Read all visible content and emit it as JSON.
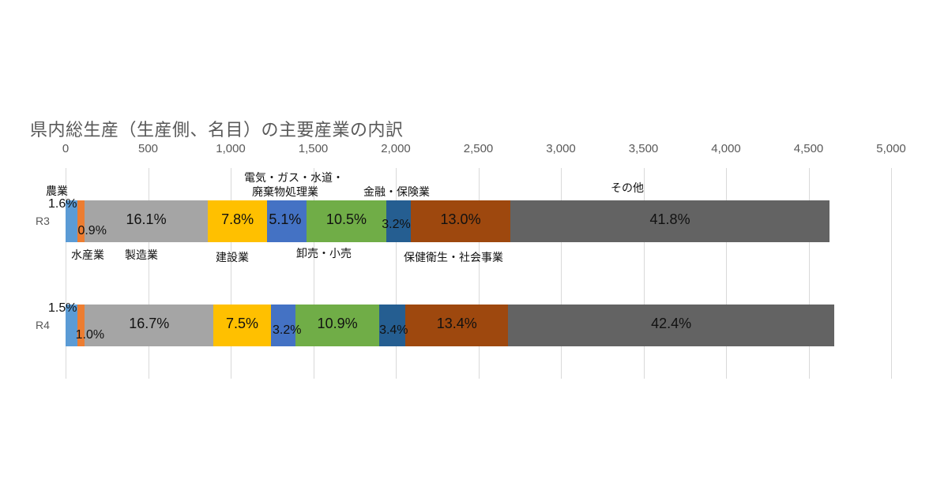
{
  "title": "県内総生産（生産側、名目）の主要産業の内訳",
  "axis": {
    "ticks": [
      "0",
      "500",
      "1,000",
      "1,500",
      "2,000",
      "2,500",
      "3,000",
      "3,500",
      "4,000",
      "4,500",
      "5,000"
    ]
  },
  "rows": [
    {
      "label": "R3",
      "pct_labels": [
        "1.6%",
        "0.9%",
        "16.1%",
        "7.8%",
        "5.1%",
        "10.5%",
        "3.2%",
        "13.0%",
        "41.8%"
      ]
    },
    {
      "label": "R4",
      "pct_labels": [
        "1.5%",
        "1.0%",
        "16.7%",
        "7.5%",
        "3.2%",
        "10.9%",
        "3.4%",
        "13.4%",
        "42.4%"
      ]
    }
  ],
  "annotations": {
    "agri": "農業",
    "fish": "水産業",
    "mfg": "製造業",
    "constr": "建設業",
    "util_line1": "電気・ガス・水道・",
    "util_line2": "廃棄物処理業",
    "trade": "卸売・小売",
    "finance": "金融・保険業",
    "health": "保健衛生・社会事業",
    "other": "その他"
  },
  "colors": {
    "agri": "#5b9bd5",
    "fish": "#ed7d31",
    "mfg": "#a5a5a5",
    "constr": "#ffc000",
    "util": "#4472c4",
    "trade": "#70ad47",
    "finance": "#255e91",
    "health": "#9e480e",
    "other": "#636363"
  },
  "chart_data": {
    "type": "bar",
    "orientation": "horizontal",
    "stacked": true,
    "title": "県内総生産（生産側、名目）の主要産業の内訳",
    "categories": [
      "R3",
      "R4"
    ],
    "xlim": [
      0,
      5000
    ],
    "xticks": [
      0,
      500,
      1000,
      1500,
      2000,
      2500,
      3000,
      3500,
      4000,
      4500,
      5000
    ],
    "grid": true,
    "legend": "inline annotations",
    "series": [
      {
        "name": "農業",
        "percent": [
          1.6,
          1.5
        ],
        "values": [
          74,
          70
        ]
      },
      {
        "name": "水産業",
        "percent": [
          0.9,
          1.0
        ],
        "values": [
          42,
          47
        ]
      },
      {
        "name": "製造業",
        "percent": [
          16.1,
          16.7
        ],
        "values": [
          745,
          778
        ]
      },
      {
        "name": "建設業",
        "percent": [
          7.8,
          7.5
        ],
        "values": [
          361,
          349
        ]
      },
      {
        "name": "電気・ガス・水道・廃棄物処理業",
        "percent": [
          5.1,
          3.2
        ],
        "values": [
          236,
          149
        ]
      },
      {
        "name": "卸売・小売",
        "percent": [
          10.5,
          10.9
        ],
        "values": [
          486,
          507
        ]
      },
      {
        "name": "金融・保険業",
        "percent": [
          3.2,
          3.4
        ],
        "values": [
          148,
          158
        ]
      },
      {
        "name": "保健衛生・社会事業",
        "percent": [
          13.0,
          13.4
        ],
        "values": [
          602,
          624
        ]
      },
      {
        "name": "その他",
        "percent": [
          41.8,
          42.4
        ],
        "values": [
          1934,
          1973
        ]
      }
    ],
    "totals": [
      4628,
      4655
    ]
  }
}
